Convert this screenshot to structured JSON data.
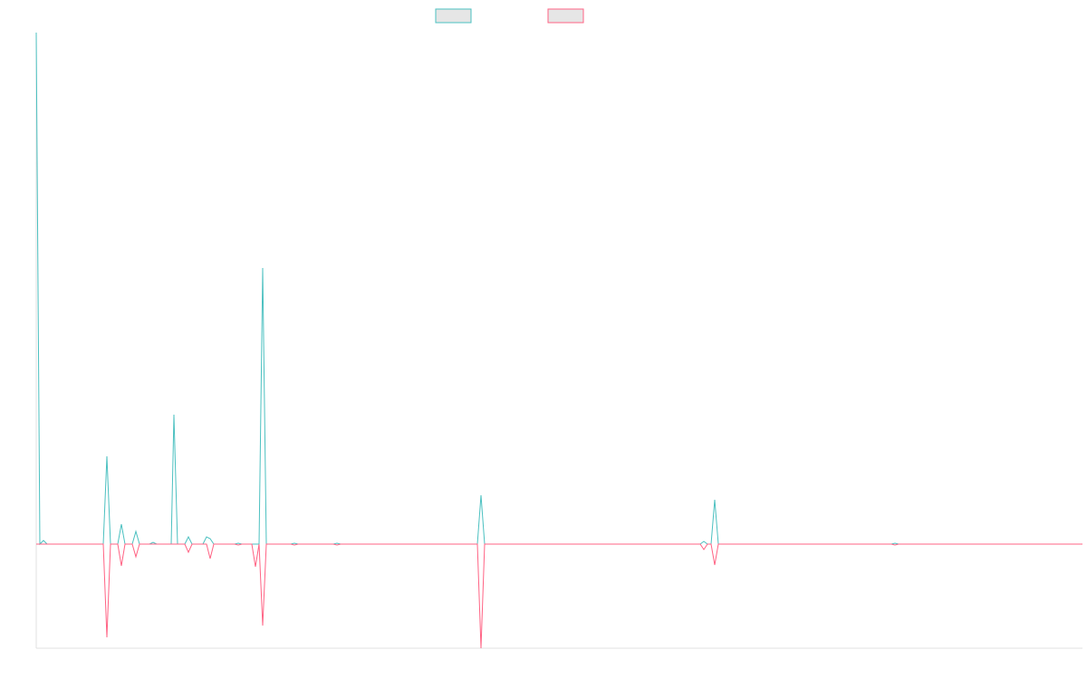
{
  "chart_data": {
    "type": "line",
    "xlim": [
      0,
      1155
    ],
    "ylim": [
      -115,
      565
    ],
    "series": [
      {
        "color": "#4bc0c0",
        "x": [
          0,
          4,
          8,
          12,
          74,
          78,
          82,
          90,
          94,
          98,
          106,
          110,
          114,
          125,
          129,
          133,
          149,
          152,
          156,
          164,
          168,
          172,
          184,
          188,
          192,
          196,
          219,
          223,
          227,
          246,
          250,
          254,
          281,
          285,
          289,
          328,
          332,
          336,
          487,
          491,
          495,
          733,
          737,
          741,
          745,
          749,
          753,
          944,
          948,
          952,
          1155
        ],
        "values": [
          565,
          0,
          4,
          0,
          0,
          97,
          0,
          0,
          22,
          0,
          0,
          14,
          0,
          0,
          2,
          0,
          0,
          143,
          0,
          0,
          8,
          0,
          0,
          8,
          6,
          0,
          0,
          1,
          0,
          0,
          305,
          0,
          0,
          1,
          0,
          0,
          1,
          0,
          0,
          54,
          0,
          0,
          3,
          0,
          0,
          49,
          0,
          0,
          1,
          0,
          0
        ]
      },
      {
        "color": "#ff6384",
        "x": [
          0,
          74,
          78,
          82,
          90,
          94,
          98,
          106,
          110,
          114,
          164,
          168,
          172,
          188,
          192,
          196,
          219,
          223,
          227,
          238,
          242,
          246,
          250,
          254,
          281,
          285,
          289,
          328,
          332,
          336,
          487,
          491,
          495,
          733,
          737,
          741,
          745,
          749,
          753,
          944,
          948,
          952,
          1155
        ],
        "values": [
          0,
          0,
          -103,
          0,
          0,
          -24,
          0,
          0,
          -14,
          0,
          0,
          -9,
          0,
          0,
          -16,
          0,
          0,
          -1,
          0,
          0,
          -25,
          0,
          -90,
          0,
          0,
          -1,
          0,
          0,
          -1,
          0,
          0,
          -115,
          0,
          0,
          -6,
          0,
          0,
          -23,
          0,
          0,
          -1,
          0,
          0
        ]
      }
    ]
  }
}
